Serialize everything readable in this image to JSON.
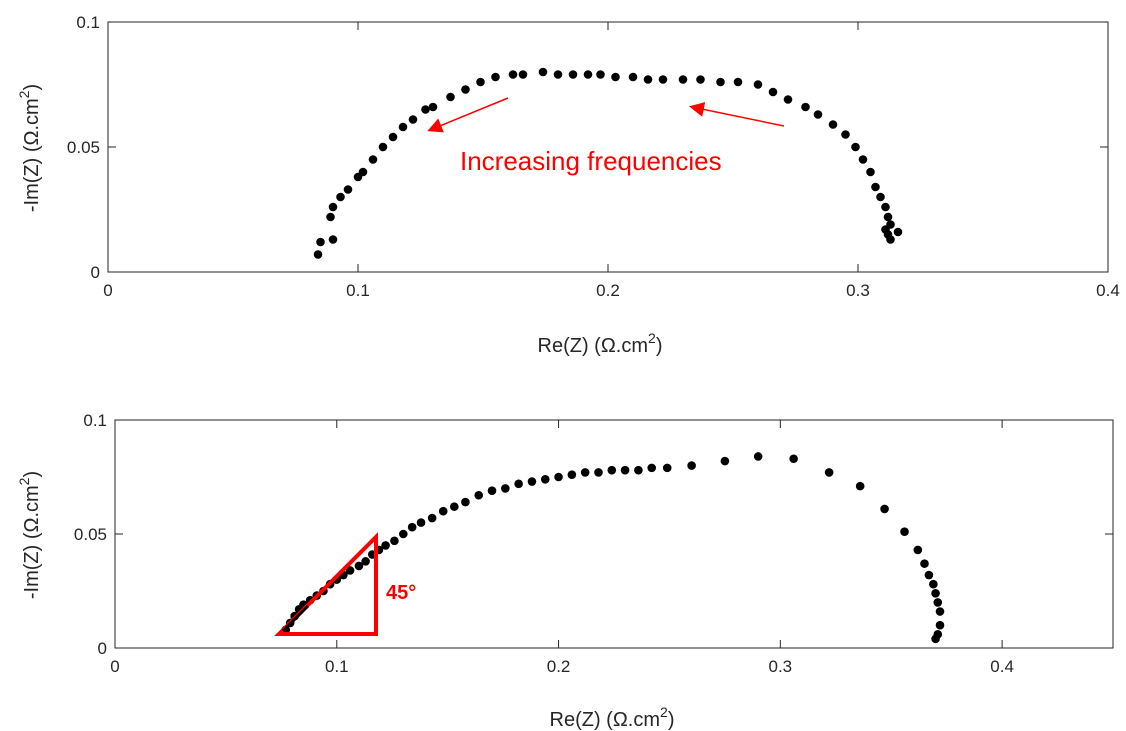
{
  "colors": {
    "points": "#000000",
    "annotation": "#ff0000",
    "axes": "#262626"
  },
  "chart_data": [
    {
      "type": "scatter",
      "xlabel_base": "Re(Z) (Ω.cm",
      "xlabel_exp": "2",
      "xlabel_close": ")",
      "ylabel_base": "-Im(Z) (Ω.cm",
      "ylabel_exp": "2",
      "ylabel_close": ")",
      "xlim": [
        0,
        0.4
      ],
      "ylim": [
        0,
        0.1
      ],
      "xticks": [
        "0",
        "0.1",
        "0.2",
        "0.3",
        "0.4"
      ],
      "yticks": [
        "0",
        "0.05",
        "0.1"
      ],
      "annotation": "Increasing frequencies",
      "series": [
        {
          "x": [
            0.084,
            0.085,
            0.09,
            0.089,
            0.09,
            0.093,
            0.096,
            0.1,
            0.102,
            0.106,
            0.11,
            0.114,
            0.118,
            0.122,
            0.127,
            0.13,
            0.137,
            0.143,
            0.149,
            0.155,
            0.162,
            0.166,
            0.174,
            0.18,
            0.186,
            0.192,
            0.197,
            0.203,
            0.21,
            0.216,
            0.222,
            0.23,
            0.237,
            0.245,
            0.252,
            0.26,
            0.266,
            0.272,
            0.279,
            0.284,
            0.29,
            0.295,
            0.299,
            0.302,
            0.305,
            0.307,
            0.309,
            0.311,
            0.312,
            0.313,
            0.316,
            0.313,
            0.312,
            0.311
          ],
          "y": [
            0.007,
            0.012,
            0.013,
            0.022,
            0.026,
            0.03,
            0.033,
            0.038,
            0.04,
            0.045,
            0.05,
            0.054,
            0.058,
            0.061,
            0.065,
            0.066,
            0.07,
            0.073,
            0.076,
            0.078,
            0.079,
            0.079,
            0.08,
            0.079,
            0.079,
            0.079,
            0.079,
            0.078,
            0.078,
            0.077,
            0.077,
            0.077,
            0.077,
            0.076,
            0.076,
            0.075,
            0.072,
            0.069,
            0.066,
            0.063,
            0.059,
            0.055,
            0.05,
            0.045,
            0.04,
            0.034,
            0.03,
            0.026,
            0.022,
            0.019,
            0.016,
            0.013,
            0.015,
            0.017
          ]
        }
      ]
    },
    {
      "type": "scatter",
      "xlabel_base": "Re(Z) (Ω.cm",
      "xlabel_exp": "2",
      "xlabel_close": ")",
      "ylabel_base": "-Im(Z) (Ω.cm",
      "ylabel_exp": "2",
      "ylabel_close": ")",
      "xlim": [
        0,
        0.45
      ],
      "ylim": [
        0,
        0.1
      ],
      "xticks": [
        "0",
        "0.1",
        "0.2",
        "0.3",
        "0.4"
      ],
      "yticks": [
        "0",
        "0.05",
        "0.1"
      ],
      "angle_label": "45°",
      "series": [
        {
          "x": [
            0.077,
            0.079,
            0.081,
            0.083,
            0.085,
            0.088,
            0.091,
            0.094,
            0.097,
            0.1,
            0.103,
            0.106,
            0.11,
            0.113,
            0.116,
            0.119,
            0.122,
            0.126,
            0.13,
            0.134,
            0.138,
            0.143,
            0.148,
            0.153,
            0.158,
            0.164,
            0.17,
            0.176,
            0.182,
            0.188,
            0.194,
            0.2,
            0.206,
            0.212,
            0.218,
            0.224,
            0.23,
            0.236,
            0.242,
            0.249,
            0.26,
            0.275,
            0.29,
            0.306,
            0.322,
            0.336,
            0.347,
            0.356,
            0.362,
            0.365,
            0.367,
            0.369,
            0.37,
            0.371,
            0.372,
            0.372,
            0.371,
            0.37
          ],
          "y": [
            0.008,
            0.011,
            0.014,
            0.017,
            0.019,
            0.021,
            0.023,
            0.025,
            0.028,
            0.03,
            0.032,
            0.034,
            0.036,
            0.038,
            0.041,
            0.043,
            0.045,
            0.047,
            0.05,
            0.053,
            0.055,
            0.057,
            0.06,
            0.062,
            0.064,
            0.067,
            0.069,
            0.07,
            0.072,
            0.073,
            0.074,
            0.075,
            0.076,
            0.077,
            0.077,
            0.078,
            0.078,
            0.078,
            0.079,
            0.079,
            0.08,
            0.082,
            0.084,
            0.083,
            0.077,
            0.071,
            0.061,
            0.051,
            0.043,
            0.037,
            0.032,
            0.028,
            0.024,
            0.02,
            0.016,
            0.01,
            0.006,
            0.004
          ]
        }
      ]
    }
  ]
}
